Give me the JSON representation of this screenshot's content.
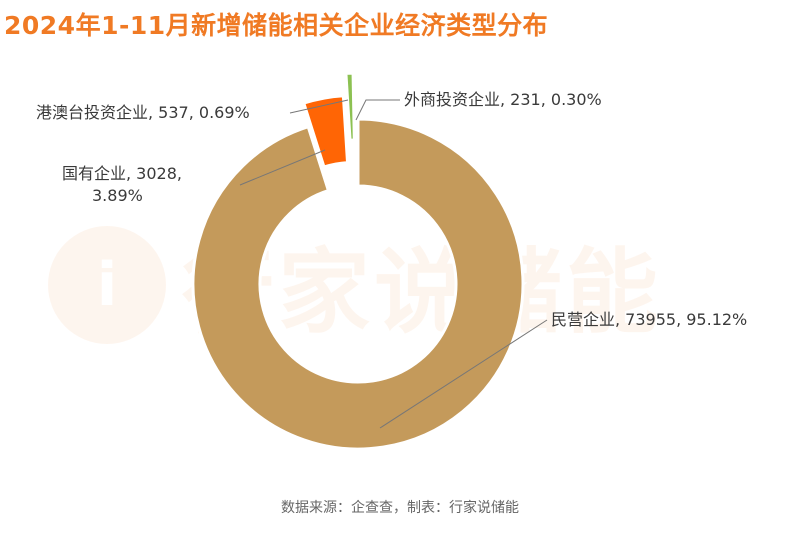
{
  "title": "2024年1-11月新增储能相关企业经济类型分布",
  "source": "数据来源：企查查，制表：行家说储能",
  "watermark": {
    "logo_text": "i",
    "text": "行家说储能"
  },
  "chart_data": {
    "type": "pie",
    "donut": true,
    "slices": [
      {
        "name": "民营企业",
        "value": 73955,
        "percent": "95.12%",
        "color": "#c49a5b",
        "label": "民营企业, 73955, 95.12%"
      },
      {
        "name": "国有企业",
        "value": 3028,
        "percent": "3.89%",
        "color": "#ff6505",
        "label_line1": "国有企业, 3028,",
        "label_line2": "3.89%"
      },
      {
        "name": "港澳台投资企业",
        "value": 537,
        "percent": "0.69%",
        "color": "#8cc152",
        "label": "港澳台投资企业, 537, 0.69%"
      },
      {
        "name": "外商投资企业",
        "value": 231,
        "percent": "0.30%",
        "color": "#e3e86a",
        "label": "外商投资企业, 231, 0.30%"
      }
    ]
  }
}
